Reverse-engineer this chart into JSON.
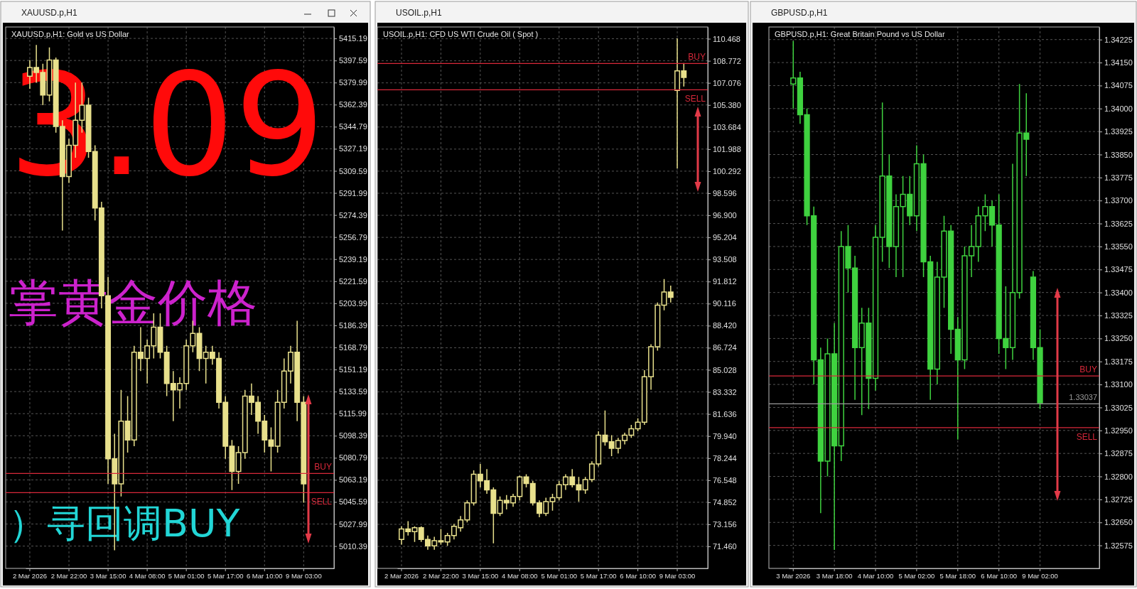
{
  "chart_data": [
    {
      "type": "candlestick",
      "title": "XAUUSD.p,H1",
      "subtitle": "XAUUSD.p,H1: Gold vs US Dollar",
      "color": "#e8e08c",
      "grid": true,
      "categories": [
        "2 Mar 2026",
        null,
        null,
        null,
        null,
        null,
        "2 Mar 22:00",
        null,
        null,
        null,
        null,
        null,
        "3 Mar 15:00",
        null,
        null,
        null,
        null,
        null,
        "4 Mar 08:00",
        null,
        null,
        null,
        null,
        null,
        "5 Mar 01:00",
        null,
        null,
        null,
        null,
        null,
        "5 Mar 17:00",
        null,
        null,
        null,
        null,
        null,
        "6 Mar 10:00",
        null,
        null,
        null,
        null,
        null,
        "9 Mar 03:00",
        null,
        null,
        null,
        null
      ],
      "ohlc": [
        [
          5385,
          5398,
          5375,
          5392
        ],
        [
          5392,
          5410,
          5380,
          5388
        ],
        [
          5388,
          5395,
          5362,
          5370
        ],
        [
          5370,
          5408,
          5365,
          5398
        ],
        [
          5398,
          5400,
          5340,
          5345
        ],
        [
          5345,
          5350,
          5262,
          5305
        ],
        [
          5305,
          5335,
          5300,
          5330
        ],
        [
          5330,
          5380,
          5320,
          5350
        ],
        [
          5350,
          5380,
          5340,
          5362
        ],
        [
          5362,
          5368,
          5320,
          5325
        ],
        [
          5325,
          5330,
          5270,
          5280
        ],
        [
          5280,
          5285,
          5200,
          5210
        ],
        [
          5210,
          5225,
          5060,
          5080
        ],
        [
          5080,
          5100,
          5007,
          5060
        ],
        [
          5060,
          5135,
          5050,
          5110
        ],
        [
          5110,
          5130,
          5085,
          5095
        ],
        [
          5095,
          5170,
          5090,
          5165
        ],
        [
          5165,
          5185,
          5150,
          5160
        ],
        [
          5160,
          5175,
          5140,
          5170
        ],
        [
          5170,
          5196,
          5160,
          5185
        ],
        [
          5185,
          5196,
          5160,
          5165
        ],
        [
          5165,
          5170,
          5130,
          5140
        ],
        [
          5140,
          5150,
          5110,
          5135
        ],
        [
          5135,
          5145,
          5120,
          5140
        ],
        [
          5140,
          5175,
          5135,
          5170
        ],
        [
          5170,
          5190,
          5165,
          5180
        ],
        [
          5180,
          5185,
          5150,
          5160
        ],
        [
          5160,
          5170,
          5140,
          5165
        ],
        [
          5165,
          5170,
          5155,
          5160
        ],
        [
          5160,
          5165,
          5120,
          5125
        ],
        [
          5125,
          5130,
          5080,
          5090
        ],
        [
          5090,
          5095,
          5055,
          5070
        ],
        [
          5070,
          5090,
          5060,
          5085
        ],
        [
          5085,
          5135,
          5080,
          5130
        ],
        [
          5130,
          5140,
          5115,
          5125
        ],
        [
          5125,
          5130,
          5100,
          5110
        ],
        [
          5110,
          5115,
          5085,
          5095
        ],
        [
          5095,
          5105,
          5070,
          5090
        ],
        [
          5090,
          5135,
          5085,
          5125
        ],
        [
          5125,
          5160,
          5120,
          5150
        ],
        [
          5150,
          5170,
          5140,
          5165
        ],
        [
          5165,
          5190,
          5110,
          5125
        ],
        [
          5125,
          5130,
          5045,
          5060
        ],
        null,
        null,
        null,
        null
      ],
      "ylim": [
        4992.6,
        5424.3
      ],
      "yticks": [
        5010.39,
        5027.99,
        5045.59,
        5063.19,
        5080.79,
        5098.39,
        5115.99,
        5133.59,
        5151.19,
        5168.79,
        5186.39,
        5203.99,
        5221.59,
        5239.19,
        5256.79,
        5274.39,
        5291.99,
        5309.59,
        5327.19,
        5344.79,
        5362.39,
        5379.99,
        5397.59,
        5415.19
      ],
      "ref_lines": [
        {
          "axis": "y",
          "value": 5068.3,
          "label": "BUY",
          "color": "#d8283a"
        },
        {
          "axis": "y",
          "value": 5053.0,
          "label": "SELL",
          "color": "#d8283a"
        }
      ],
      "annotations": [
        "3.09",
        "掌黄金价格",
        "）寻回调BUY"
      ]
    },
    {
      "type": "candlestick",
      "title": "USOIL.p,H1",
      "subtitle": "USOIL.p,H1: CFD US WTI Crude Oil ( Spot )",
      "color": "#e8e08c",
      "grid": true,
      "categories": [
        "2 Mar 2026",
        null,
        null,
        null,
        null,
        null,
        "2 Mar 22:00",
        null,
        null,
        null,
        null,
        null,
        "3 Mar 15:00",
        null,
        null,
        null,
        null,
        null,
        "4 Mar 08:00",
        null,
        null,
        null,
        null,
        null,
        "5 Mar 01:00",
        null,
        null,
        null,
        null,
        null,
        "5 Mar 17:00",
        null,
        null,
        null,
        null,
        null,
        "6 Mar 10:00",
        null,
        null,
        null,
        null,
        null,
        "9 Mar 03:00",
        null,
        null,
        null,
        null
      ],
      "ohlc": [
        [
          72.0,
          73.0,
          71.6,
          72.8
        ],
        [
          72.8,
          73.4,
          72.3,
          72.6
        ],
        [
          72.6,
          73.0,
          71.8,
          72.9
        ],
        [
          72.9,
          73.0,
          71.8,
          72.0
        ],
        [
          72.0,
          72.3,
          71.2,
          71.5
        ],
        [
          71.5,
          72.2,
          71.2,
          71.9
        ],
        [
          71.9,
          72.8,
          71.6,
          71.8
        ],
        [
          71.8,
          72.5,
          71.5,
          72.3
        ],
        [
          72.3,
          73.2,
          72.0,
          73.0
        ],
        [
          72.9,
          73.8,
          72.6,
          73.5
        ],
        [
          73.5,
          75.0,
          73.3,
          74.8
        ],
        [
          74.8,
          77.3,
          74.6,
          77.0
        ],
        [
          77.0,
          77.8,
          76.0,
          76.5
        ],
        [
          76.5,
          77.4,
          75.5,
          75.8
        ],
        [
          75.8,
          76.0,
          71.7,
          74.0
        ],
        [
          74.0,
          75.3,
          73.8,
          75.0
        ],
        [
          75.0,
          75.4,
          74.3,
          74.8
        ],
        [
          74.8,
          75.5,
          74.5,
          75.3
        ],
        [
          75.3,
          76.9,
          75.0,
          76.8
        ],
        [
          76.8,
          77.0,
          76.0,
          76.3
        ],
        [
          76.3,
          76.5,
          74.6,
          74.8
        ],
        [
          74.8,
          75.0,
          73.7,
          74.0
        ],
        [
          74.0,
          75.2,
          73.8,
          74.9
        ],
        [
          74.9,
          75.5,
          74.2,
          75.2
        ],
        [
          75.2,
          76.5,
          75.0,
          76.2
        ],
        [
          76.2,
          77.0,
          75.8,
          76.8
        ],
        [
          76.8,
          77.4,
          76.0,
          76.2
        ],
        [
          76.2,
          76.8,
          74.9,
          75.8
        ],
        [
          75.8,
          76.8,
          75.5,
          76.6
        ],
        [
          76.6,
          78.0,
          76.4,
          77.8
        ],
        [
          77.8,
          80.3,
          77.6,
          80.0
        ],
        [
          80.0,
          81.9,
          79.2,
          79.5
        ],
        [
          79.5,
          80.0,
          78.4,
          79.0
        ],
        [
          79.0,
          79.8,
          78.6,
          79.6
        ],
        [
          79.6,
          80.2,
          79.3,
          80.0
        ],
        [
          80.0,
          80.8,
          79.8,
          80.5
        ],
        [
          80.5,
          81.3,
          80.3,
          81.0
        ],
        [
          81.0,
          85.0,
          80.8,
          84.5
        ],
        [
          84.5,
          87.0,
          83.5,
          86.8
        ],
        [
          86.8,
          90.2,
          86.5,
          90.0
        ],
        [
          90.0,
          92.0,
          89.6,
          91.0
        ],
        [
          91.0,
          91.5,
          90.2,
          90.6
        ],
        [
          106.5,
          110.5,
          100.5,
          108.0
        ],
        [
          108.0,
          108.6,
          106.8,
          107.5
        ],
        null,
        null,
        null
      ],
      "ylim": [
        69.77,
        111.37
      ],
      "yticks": [
        {
          "value": 71.46,
          "label": "71.460"
        },
        73.156,
        74.852,
        76.548,
        78.244,
        {
          "value": 79.94,
          "label": "79.940"
        },
        81.636,
        83.332,
        85.028,
        86.724,
        {
          "value": 88.42,
          "label": "88.420"
        },
        90.116,
        91.812,
        93.508,
        95.204,
        {
          "value": 96.9,
          "label": "96.900"
        },
        98.596,
        100.292,
        101.988,
        103.684,
        {
          "value": 105.38,
          "label": "105.380"
        },
        107.076,
        108.772,
        110.468
      ],
      "ref_lines": [
        {
          "axis": "y",
          "value": 108.56,
          "label": "BUY",
          "color": "#d8283a"
        },
        {
          "axis": "y",
          "value": 106.54,
          "label": "SELL",
          "color": "#d8283a"
        }
      ]
    },
    {
      "type": "candlestick",
      "title": "GBPUSD.p,H1",
      "subtitle": "GBPUSD.p,H1: Great Britain Pound vs US Dollar",
      "color": "#3fd23f",
      "grid": true,
      "categories": [
        "3 Mar 2026",
        null,
        null,
        null,
        null,
        null,
        "3 Mar 18:00",
        null,
        null,
        null,
        null,
        null,
        "4 Mar 10:00",
        null,
        null,
        null,
        null,
        null,
        "5 Mar 02:00",
        null,
        null,
        null,
        null,
        null,
        "5 Mar 18:00",
        null,
        null,
        null,
        null,
        null,
        "6 Mar 10:00",
        null,
        null,
        null,
        null,
        null,
        "9 Mar 02:00",
        null,
        null,
        null,
        null,
        null,
        null,
        null,
        null
      ],
      "ohlc": [
        [
          1.3408,
          1.3422,
          1.34,
          1.341
        ],
        [
          1.341,
          1.3412,
          1.3395,
          1.3398
        ],
        [
          1.3398,
          1.34,
          1.3362,
          1.3365
        ],
        [
          1.3365,
          1.3368,
          1.331,
          1.3318
        ],
        [
          1.3318,
          1.3322,
          1.3268,
          1.3285
        ],
        [
          1.3285,
          1.3325,
          1.328,
          1.332
        ],
        [
          1.332,
          1.333,
          1.3256,
          1.329
        ],
        [
          1.329,
          1.336,
          1.3285,
          1.3355
        ],
        [
          1.3355,
          1.3362,
          1.334,
          1.3348
        ],
        [
          1.3348,
          1.3352,
          1.3305,
          1.3322
        ],
        [
          1.3322,
          1.3335,
          1.33,
          1.333
        ],
        [
          1.333,
          1.3335,
          1.3302,
          1.3312
        ],
        [
          1.3312,
          1.3362,
          1.3308,
          1.3358
        ],
        [
          1.3358,
          1.3402,
          1.335,
          1.3378
        ],
        [
          1.3378,
          1.3385,
          1.3348,
          1.3355
        ],
        [
          1.3355,
          1.3372,
          1.3345,
          1.3368
        ],
        [
          1.3368,
          1.3378,
          1.3345,
          1.3372
        ],
        [
          1.3372,
          1.3378,
          1.3362,
          1.3365
        ],
        [
          1.3365,
          1.3388,
          1.336,
          1.3382
        ],
        [
          1.3382,
          1.3385,
          1.3345,
          1.335
        ],
        [
          1.335,
          1.3352,
          1.3305,
          1.3315
        ],
        [
          1.3315,
          1.335,
          1.331,
          1.3345
        ],
        [
          1.3345,
          1.3365,
          1.3335,
          1.336
        ],
        [
          1.336,
          1.3362,
          1.332,
          1.3328
        ],
        [
          1.3328,
          1.3332,
          1.3292,
          1.3318
        ],
        [
          1.3318,
          1.3355,
          1.3315,
          1.3352
        ],
        [
          1.3352,
          1.3362,
          1.3345,
          1.3355
        ],
        [
          1.3355,
          1.3368,
          1.335,
          1.3365
        ],
        [
          1.3365,
          1.3372,
          1.336,
          1.3368
        ],
        [
          1.3368,
          1.337,
          1.3355,
          1.3362
        ],
        [
          1.3362,
          1.3372,
          1.332,
          1.3325
        ],
        [
          1.3325,
          1.3342,
          1.3315,
          1.3322
        ],
        [
          1.3322,
          1.3382,
          1.3318,
          1.334
        ],
        [
          1.334,
          1.3408,
          1.3338,
          1.3392
        ],
        [
          1.3392,
          1.3405,
          1.3378,
          1.339
        ],
        [
          1.3345,
          1.3347,
          1.3318,
          1.3322
        ],
        [
          1.3322,
          1.3328,
          1.3302,
          1.3304
        ],
        null,
        null,
        null,
        null,
        null,
        null,
        null,
        null
      ],
      "ylim": [
        1.325,
        1.34266
      ],
      "yticks": [
        1.32575,
        {
          "value": 1.3265,
          "label": "1.32650"
        },
        1.32725,
        {
          "value": 1.328,
          "label": "1.32800"
        },
        1.32875,
        {
          "value": 1.3295,
          "label": "1.32950"
        },
        1.33025,
        {
          "value": 1.331,
          "label": "1.33100"
        },
        1.33175,
        {
          "value": 1.3325,
          "label": "1.33250"
        },
        1.33325,
        {
          "value": 1.334,
          "label": "1.33400"
        },
        1.33475,
        {
          "value": 1.3355,
          "label": "1.33550"
        },
        1.33625,
        {
          "value": 1.337,
          "label": "1.33700"
        },
        1.33775,
        {
          "value": 1.3385,
          "label": "1.33850"
        },
        1.33925,
        {
          "value": 1.34,
          "label": "1.34000"
        },
        1.34075,
        {
          "value": 1.3415,
          "label": "1.34150"
        },
        1.34225
      ],
      "ref_lines": [
        {
          "axis": "y",
          "value": 1.33128,
          "label": "BUY",
          "color": "#d8283a"
        },
        {
          "axis": "y",
          "value": 1.32959,
          "label": "SELL",
          "color": "#d8283a"
        },
        {
          "axis": "y",
          "value": 1.33037,
          "label": "1.33037",
          "color": "#9a9a9a"
        }
      ]
    }
  ]
}
